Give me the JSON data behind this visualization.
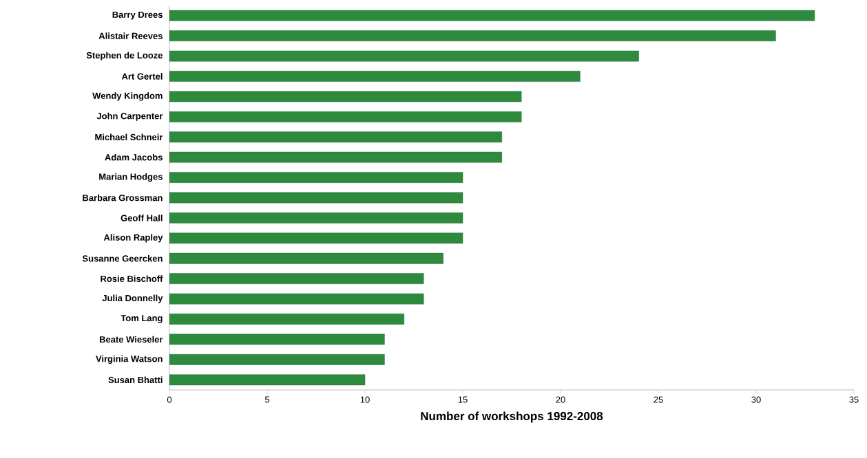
{
  "chart_data": {
    "type": "bar",
    "orientation": "horizontal",
    "xlabel": "Number of workshops 1992-2008",
    "categories": [
      "Barry Drees",
      "Alistair Reeves",
      "Stephen de Looze",
      "Art Gertel",
      "Wendy Kingdom",
      "John Carpenter",
      "Michael Schneir",
      "Adam Jacobs",
      "Marian Hodges",
      "Barbara Grossman",
      "Geoff Hall",
      "Alison Rapley",
      "Susanne Geercken",
      "Rosie Bischoff",
      "Julia Donnelly",
      "Tom Lang",
      "Beate Wieseler",
      "Virginia Watson",
      "Susan Bhatti"
    ],
    "values": [
      33,
      31,
      24,
      21,
      18,
      18,
      17,
      17,
      15,
      15,
      15,
      15,
      14,
      13,
      13,
      12,
      11,
      11,
      10
    ],
    "color": "#2e8b3e",
    "xlim": [
      0,
      35
    ],
    "xticks": [
      0,
      5,
      10,
      15,
      20,
      25,
      30,
      35
    ]
  }
}
